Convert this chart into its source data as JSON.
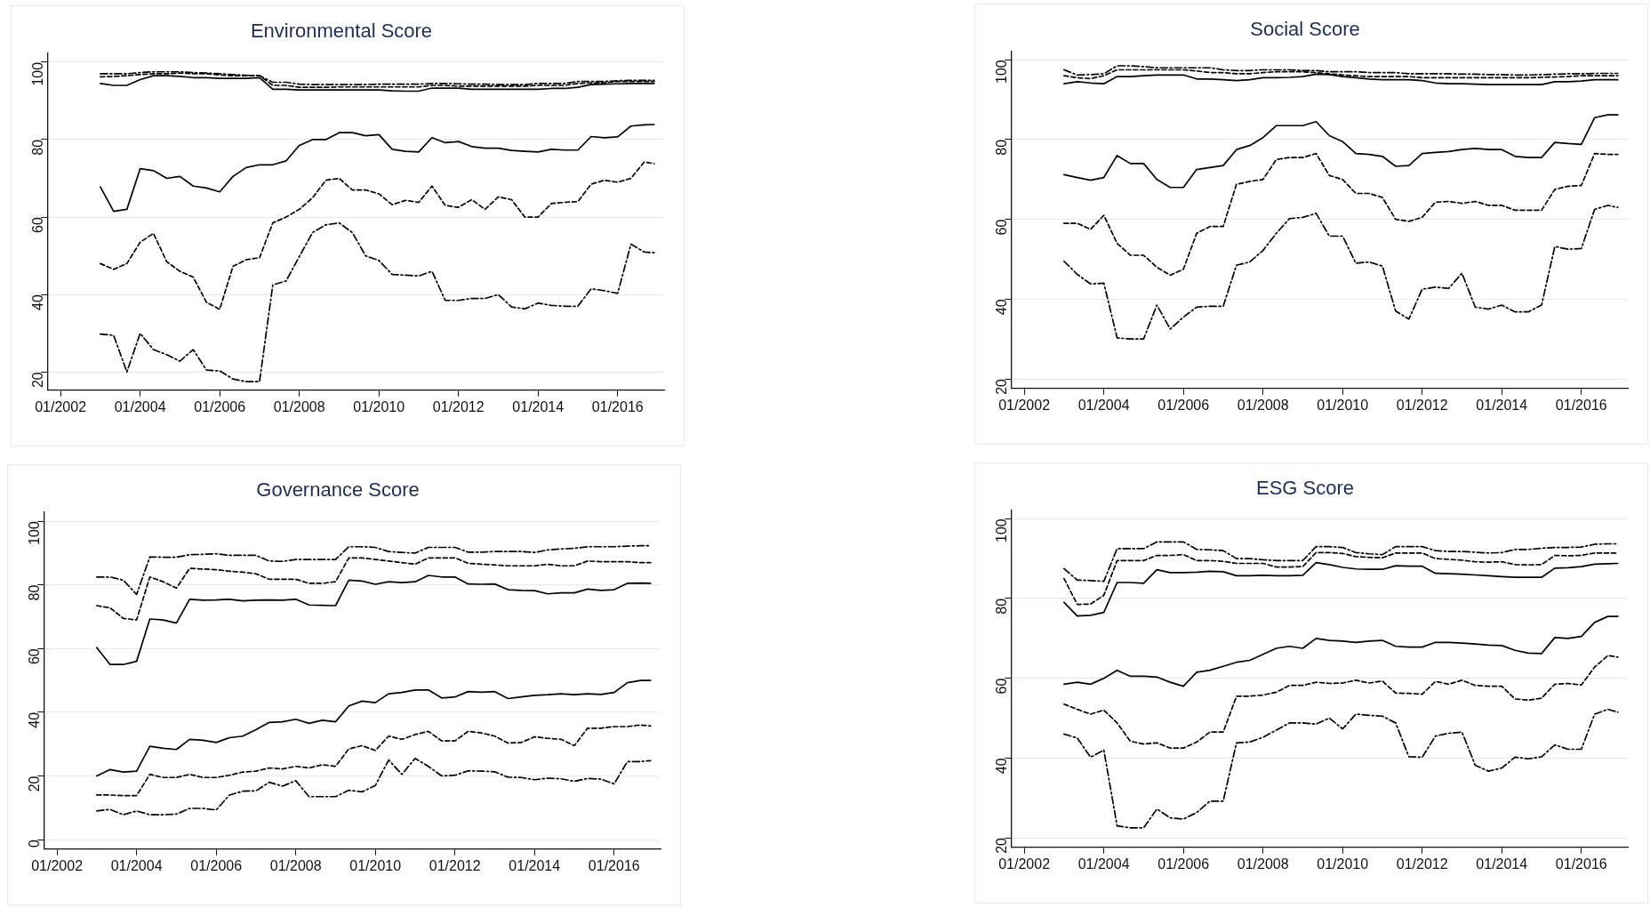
{
  "chart_data": [
    {
      "type": "line",
      "title": "Environmental Score",
      "grid": "y",
      "x": [
        "2003-01",
        "2003-05",
        "2003-09",
        "2004-01",
        "2004-05",
        "2004-09",
        "2005-01",
        "2005-05",
        "2005-09",
        "2006-01",
        "2006-05",
        "2006-09",
        "2007-01",
        "2007-05",
        "2007-09",
        "2008-01",
        "2008-05",
        "2008-09",
        "2009-01",
        "2009-05",
        "2009-09",
        "2010-01",
        "2010-05",
        "2010-09",
        "2011-01",
        "2011-05",
        "2011-09",
        "2012-01",
        "2012-05",
        "2012-09",
        "2013-01",
        "2013-05",
        "2013-09",
        "2014-01",
        "2014-05",
        "2014-09",
        "2015-01",
        "2015-05",
        "2015-09",
        "2016-01",
        "2016-05",
        "2016-09",
        "2016-12"
      ],
      "xlim": [
        "2001-09",
        "2017-03"
      ],
      "xticks": [
        {
          "value": "2002-01",
          "label": "01/2002"
        },
        {
          "value": "2004-01",
          "label": "01/2004"
        },
        {
          "value": "2006-01",
          "label": "01/2006"
        },
        {
          "value": "2008-01",
          "label": "01/2008"
        },
        {
          "value": "2010-01",
          "label": "01/2010"
        },
        {
          "value": "2012-01",
          "label": "01/2012"
        },
        {
          "value": "2014-01",
          "label": "01/2014"
        },
        {
          "value": "2016-01",
          "label": "01/2016"
        }
      ],
      "ylim": [
        15.3,
        102.4
      ],
      "yticks": [
        20,
        40,
        60,
        80,
        100
      ],
      "series": [
        {
          "color": "#000000",
          "line_style": "solid",
          "values": [
            94.5,
            94,
            94,
            95.5,
            96.5,
            96.5,
            96.3,
            96,
            96,
            95.8,
            95.8,
            95.8,
            96,
            93,
            93,
            92.8,
            92.8,
            92.8,
            92.8,
            92.8,
            92.8,
            92.8,
            92.6,
            92.5,
            92.5,
            93.3,
            93.3,
            93.3,
            93,
            93,
            93,
            93,
            93,
            93,
            93.2,
            93.2,
            93.5,
            94.2,
            94.3,
            94.4,
            94.5,
            94.5,
            94.5
          ]
        },
        {
          "color": "#000000",
          "line_style": "dashed",
          "values": [
            96.2,
            96.3,
            96.5,
            96.8,
            97,
            97,
            97.2,
            97,
            97,
            96.7,
            96.5,
            96.5,
            96.5,
            94,
            94,
            93.5,
            93.5,
            93.5,
            93.6,
            93.6,
            93.6,
            93.6,
            93.6,
            93.6,
            93.6,
            94,
            94,
            93.8,
            93.8,
            93.8,
            93.8,
            93.8,
            93.8,
            94,
            94,
            94,
            94.5,
            94.6,
            94.7,
            95,
            95,
            95,
            95
          ]
        },
        {
          "color": "#000000",
          "line_style": "dashdot",
          "values": [
            97,
            97,
            97,
            97.3,
            97.5,
            97.5,
            97.5,
            97.3,
            97.2,
            97,
            96.8,
            96.6,
            96.5,
            94.8,
            94.8,
            94.3,
            94.2,
            94.2,
            94.2,
            94.2,
            94.2,
            94.3,
            94.3,
            94.3,
            94.3,
            94.5,
            94.5,
            94.4,
            94.3,
            94.3,
            94.2,
            94.2,
            94.2,
            94.5,
            94.5,
            94.5,
            95,
            95,
            95,
            95.2,
            95.3,
            95.3,
            95.3
          ]
        },
        {
          "color": "#000000",
          "line_style": "solid",
          "values": [
            67.8,
            61.5,
            62,
            72.5,
            72,
            70,
            70.5,
            68,
            67.5,
            66.5,
            70.5,
            72.8,
            73.5,
            73.5,
            74.5,
            78.5,
            80,
            80,
            81.8,
            81.8,
            81,
            81.3,
            77.5,
            77,
            76.8,
            80.5,
            79.2,
            79.5,
            78.2,
            77.8,
            77.8,
            77.2,
            77,
            76.8,
            77.5,
            77.3,
            77.3,
            80.8,
            80.5,
            80.7,
            83.5,
            83.8,
            83.9
          ]
        },
        {
          "color": "#000000",
          "line_style": "dashed",
          "values": [
            48,
            46.5,
            48,
            53.5,
            55.8,
            48.5,
            46,
            44.5,
            38,
            36.2,
            47.3,
            49,
            49.5,
            58.5,
            60,
            62,
            65,
            69.5,
            70,
            67,
            67,
            66,
            63.2,
            64.3,
            63.8,
            68,
            63,
            62.5,
            64.5,
            62,
            65.2,
            64.5,
            60,
            60,
            63.5,
            63.8,
            64,
            68.5,
            69.5,
            69,
            70,
            74.2,
            73.8
          ]
        },
        {
          "color": "#000000",
          "line_style": "dashdot",
          "values": [
            29.8,
            29.5,
            20,
            30,
            25.8,
            24.5,
            22.8,
            25.8,
            20.5,
            20.3,
            18.2,
            17.5,
            17.5,
            42.5,
            43.5,
            49.8,
            56,
            58,
            58.5,
            56,
            50,
            48.8,
            45.2,
            45,
            44.8,
            46,
            38.5,
            38.5,
            39,
            39,
            40,
            36.8,
            36.3,
            37.8,
            37.2,
            37,
            37,
            41.5,
            41,
            40.3,
            53,
            51,
            50.8
          ]
        }
      ]
    },
    {
      "type": "line",
      "title": "Social Score",
      "grid": "y",
      "x": [
        "2003-01",
        "2003-05",
        "2003-09",
        "2004-01",
        "2004-05",
        "2004-09",
        "2005-01",
        "2005-05",
        "2005-09",
        "2006-01",
        "2006-05",
        "2006-09",
        "2007-01",
        "2007-05",
        "2007-09",
        "2008-01",
        "2008-05",
        "2008-09",
        "2009-01",
        "2009-05",
        "2009-09",
        "2010-01",
        "2010-05",
        "2010-09",
        "2011-01",
        "2011-05",
        "2011-09",
        "2012-01",
        "2012-05",
        "2012-09",
        "2013-01",
        "2013-05",
        "2013-09",
        "2014-01",
        "2014-05",
        "2014-09",
        "2015-01",
        "2015-05",
        "2015-09",
        "2016-01",
        "2016-05",
        "2016-09",
        "2016-12"
      ],
      "xlim": [
        "2001-09",
        "2017-03"
      ],
      "xticks": [
        {
          "value": "2002-01",
          "label": "01/2002"
        },
        {
          "value": "2004-01",
          "label": "01/2004"
        },
        {
          "value": "2006-01",
          "label": "01/2006"
        },
        {
          "value": "2008-01",
          "label": "01/2008"
        },
        {
          "value": "2010-01",
          "label": "01/2010"
        },
        {
          "value": "2012-01",
          "label": "01/2012"
        },
        {
          "value": "2014-01",
          "label": "01/2014"
        },
        {
          "value": "2016-01",
          "label": "01/2016"
        }
      ],
      "ylim": [
        17.6,
        102.2
      ],
      "yticks": [
        20,
        40,
        60,
        80,
        100
      ],
      "series": [
        {
          "color": "#000000",
          "line_style": "solid",
          "values": [
            94,
            94.5,
            94.2,
            94,
            95.8,
            95.8,
            96,
            96.2,
            96.2,
            96.2,
            95.2,
            95.2,
            95,
            94.8,
            95,
            95.5,
            95.5,
            95.6,
            95.8,
            96.4,
            96.3,
            95.8,
            95.5,
            95.2,
            95,
            95,
            95,
            94.8,
            94.2,
            94,
            94,
            93.9,
            93.8,
            93.8,
            93.8,
            93.8,
            93.8,
            94.5,
            94.5,
            94.7,
            95,
            95,
            95
          ]
        },
        {
          "color": "#000000",
          "line_style": "dashed",
          "values": [
            96,
            95.5,
            95.3,
            96,
            97.5,
            97.5,
            97.5,
            97.5,
            97.5,
            97.5,
            97.2,
            96.8,
            96.8,
            96.5,
            96.5,
            96.8,
            97,
            97,
            97,
            96.8,
            96.5,
            96.2,
            96,
            95.8,
            95.8,
            95.8,
            95.8,
            95.5,
            95.5,
            95.5,
            95.5,
            95.5,
            95.5,
            95.5,
            95.5,
            95.5,
            95.6,
            95.7,
            95.8,
            96,
            96,
            96,
            96
          ]
        },
        {
          "color": "#000000",
          "line_style": "dashdot",
          "values": [
            97.5,
            96.2,
            96.3,
            96.5,
            98.5,
            98.5,
            98.3,
            98,
            98,
            98,
            98,
            98,
            97.5,
            97.3,
            97.3,
            97.5,
            97.5,
            97.5,
            97.3,
            97.3,
            97,
            97,
            97,
            96.8,
            96.8,
            96.8,
            96.5,
            96.5,
            96.5,
            96.5,
            96.4,
            96.4,
            96.3,
            96.3,
            96.2,
            96.2,
            96.3,
            96.4,
            96.5,
            96.5,
            96.6,
            96.6,
            96.6
          ]
        },
        {
          "color": "#000000",
          "line_style": "solid",
          "values": [
            71.2,
            70.5,
            69.8,
            70.5,
            76,
            74,
            74,
            70,
            68,
            68,
            72.5,
            73,
            73.5,
            77.5,
            78.5,
            80.5,
            83.5,
            83.5,
            83.5,
            84.5,
            81,
            79.5,
            76.5,
            76.3,
            75.8,
            73.3,
            73.5,
            76.5,
            76.8,
            77,
            77.5,
            77.8,
            77.5,
            77.5,
            75.8,
            75.5,
            75.5,
            79.3,
            79,
            78.8,
            85.5,
            86.2,
            86.2
          ]
        },
        {
          "color": "#000000",
          "line_style": "dashed",
          "values": [
            59,
            59,
            57.5,
            61,
            54,
            51,
            51,
            48,
            46,
            47.5,
            56.5,
            58.2,
            58.2,
            68.8,
            69.5,
            70,
            75,
            75.5,
            75.5,
            76.5,
            71,
            70,
            66.5,
            66.5,
            65.5,
            60,
            59.5,
            60.5,
            64.3,
            64.5,
            64,
            64.5,
            63.5,
            63.5,
            62.3,
            62.3,
            62.3,
            67.5,
            68.3,
            68.5,
            76.5,
            76.3,
            76.3
          ]
        },
        {
          "color": "#000000",
          "line_style": "dashdot",
          "values": [
            49.5,
            46.2,
            43.8,
            44,
            30.3,
            30,
            30,
            38.5,
            32.5,
            35.5,
            38,
            38.2,
            38.2,
            48.5,
            49.3,
            52.2,
            56.5,
            60.2,
            60.5,
            61.5,
            55.8,
            55.8,
            49,
            49.3,
            48.3,
            37,
            35,
            42.5,
            43,
            42.7,
            46.5,
            38,
            37.5,
            38.5,
            36.8,
            36.8,
            38.5,
            53.2,
            52.5,
            52.7,
            62.5,
            63.5,
            63
          ]
        }
      ]
    },
    {
      "type": "line",
      "title": "Governance Score",
      "grid": "y",
      "x": [
        "2003-01",
        "2003-05",
        "2003-09",
        "2004-01",
        "2004-05",
        "2004-09",
        "2005-01",
        "2005-05",
        "2005-09",
        "2006-01",
        "2006-05",
        "2006-09",
        "2007-01",
        "2007-05",
        "2007-09",
        "2008-01",
        "2008-05",
        "2008-09",
        "2009-01",
        "2009-05",
        "2009-09",
        "2010-01",
        "2010-05",
        "2010-09",
        "2011-01",
        "2011-05",
        "2011-09",
        "2012-01",
        "2012-05",
        "2012-09",
        "2013-01",
        "2013-05",
        "2013-09",
        "2014-01",
        "2014-05",
        "2014-09",
        "2015-01",
        "2015-05",
        "2015-09",
        "2016-01",
        "2016-05",
        "2016-09",
        "2016-12"
      ],
      "xlim": [
        "2001-09",
        "2017-03"
      ],
      "xticks": [
        {
          "value": "2002-01",
          "label": "01/2002"
        },
        {
          "value": "2004-01",
          "label": "01/2004"
        },
        {
          "value": "2006-01",
          "label": "01/2006"
        },
        {
          "value": "2008-01",
          "label": "01/2008"
        },
        {
          "value": "2010-01",
          "label": "01/2010"
        },
        {
          "value": "2012-01",
          "label": "01/2012"
        },
        {
          "value": "2014-01",
          "label": "01/2014"
        },
        {
          "value": "2016-01",
          "label": "01/2016"
        }
      ],
      "ylim": [
        -3,
        103
      ],
      "yticks": [
        0,
        20,
        40,
        60,
        80,
        100
      ],
      "series": [
        {
          "color": "#000000",
          "line_style": "solid",
          "values": [
            60.3,
            55,
            55,
            56,
            69.3,
            69,
            68,
            75.5,
            75.2,
            75.3,
            75.5,
            75,
            75.2,
            75.3,
            75.2,
            75.5,
            73.7,
            73.6,
            73.5,
            81.5,
            81.2,
            80.2,
            81,
            80.7,
            81,
            83,
            82.5,
            82.5,
            80.3,
            80.2,
            80.3,
            78.5,
            78.3,
            78.2,
            77.2,
            77.5,
            77.5,
            78.7,
            78.3,
            78.5,
            80.5,
            80.6,
            80.5
          ]
        },
        {
          "color": "#000000",
          "line_style": "dashed",
          "values": [
            73.5,
            72.8,
            69.5,
            69,
            82.5,
            81,
            79,
            85.2,
            85,
            84.8,
            84.3,
            84,
            83.5,
            81.8,
            81.8,
            81.8,
            80.5,
            80.5,
            81,
            88.5,
            88.5,
            88,
            87.5,
            87,
            86.5,
            88.5,
            88.5,
            88.5,
            86.8,
            86.5,
            86.3,
            86,
            86,
            86,
            86.5,
            86,
            86,
            87.5,
            87.3,
            87.3,
            87.3,
            87,
            87
          ]
        },
        {
          "color": "#000000",
          "line_style": "dashdot",
          "values": [
            82.5,
            82.5,
            81.5,
            77,
            88.8,
            88.7,
            88.7,
            89.5,
            89.6,
            89.8,
            89.3,
            89.3,
            89.3,
            87.5,
            87.4,
            88,
            88,
            88,
            88,
            92,
            92,
            91.8,
            90.5,
            90.2,
            90,
            91.8,
            91.8,
            91.8,
            90.3,
            90.3,
            90.5,
            90.5,
            90.5,
            90.2,
            91,
            91.3,
            91.5,
            92,
            92,
            92,
            92.2,
            92.3,
            92.3
          ]
        },
        {
          "color": "#000000",
          "line_style": "solid",
          "values": [
            20,
            22,
            21.2,
            21.5,
            29.3,
            28.7,
            28.3,
            31.5,
            31.2,
            30.5,
            32,
            32.5,
            34.5,
            36.8,
            37,
            37.8,
            36.5,
            37.5,
            37,
            42,
            43.5,
            43,
            45.8,
            46.2,
            47,
            47,
            44.5,
            44.8,
            46.5,
            46.3,
            46.5,
            44.3,
            44.8,
            45.3,
            45.5,
            45.8,
            45.5,
            45.8,
            45.6,
            46.2,
            49.3,
            50,
            50
          ]
        },
        {
          "color": "#000000",
          "line_style": "dashed",
          "values": [
            14,
            14,
            13.8,
            13.8,
            20.5,
            19.5,
            19.5,
            20.5,
            19.5,
            19.5,
            20.2,
            21.2,
            21.5,
            22.5,
            22.2,
            23,
            22.5,
            23.5,
            23,
            28.5,
            29.5,
            28,
            32.5,
            31.5,
            33,
            34,
            31,
            31,
            34,
            33.5,
            32.5,
            30.3,
            30.5,
            32.3,
            31.8,
            31.5,
            29.5,
            35,
            35,
            35.5,
            35.5,
            36,
            35.7
          ]
        },
        {
          "color": "#000000",
          "line_style": "dashdot",
          "values": [
            9,
            9.5,
            7.8,
            9,
            7.8,
            7.8,
            8,
            9.8,
            9.8,
            9.3,
            14,
            15.2,
            15.3,
            18,
            16.8,
            18.5,
            13.5,
            13.5,
            13.5,
            15.5,
            15,
            17,
            25,
            20.5,
            25.5,
            23,
            20,
            20.2,
            21.6,
            21.5,
            21.3,
            19.6,
            19.5,
            18.8,
            19.3,
            19.1,
            18.3,
            19.2,
            19,
            17.5,
            24.5,
            24.5,
            24.8
          ]
        }
      ]
    },
    {
      "type": "line",
      "title": "ESG Score",
      "grid": "y",
      "x": [
        "2003-01",
        "2003-05",
        "2003-09",
        "2004-01",
        "2004-05",
        "2004-09",
        "2005-01",
        "2005-05",
        "2005-09",
        "2006-01",
        "2006-05",
        "2006-09",
        "2007-01",
        "2007-05",
        "2007-09",
        "2008-01",
        "2008-05",
        "2008-09",
        "2009-01",
        "2009-05",
        "2009-09",
        "2010-01",
        "2010-05",
        "2010-09",
        "2011-01",
        "2011-05",
        "2011-09",
        "2012-01",
        "2012-05",
        "2012-09",
        "2013-01",
        "2013-05",
        "2013-09",
        "2014-01",
        "2014-05",
        "2014-09",
        "2015-01",
        "2015-05",
        "2015-09",
        "2016-01",
        "2016-05",
        "2016-09",
        "2016-12"
      ],
      "xlim": [
        "2001-09",
        "2017-03"
      ],
      "xticks": [
        {
          "value": "2002-01",
          "label": "01/2002"
        },
        {
          "value": "2004-01",
          "label": "01/2004"
        },
        {
          "value": "2006-01",
          "label": "01/2006"
        },
        {
          "value": "2008-01",
          "label": "01/2008"
        },
        {
          "value": "2010-01",
          "label": "01/2010"
        },
        {
          "value": "2012-01",
          "label": "01/2012"
        },
        {
          "value": "2014-01",
          "label": "01/2014"
        },
        {
          "value": "2016-01",
          "label": "01/2016"
        }
      ],
      "ylim": [
        17.6,
        102.2
      ],
      "yticks": [
        20,
        40,
        60,
        80,
        100
      ],
      "series": [
        {
          "color": "#000000",
          "line_style": "solid",
          "values": [
            79,
            75.6,
            75.8,
            76.5,
            84,
            84,
            83.8,
            87.2,
            86.5,
            86.5,
            86.6,
            86.8,
            86.7,
            85.7,
            85.7,
            85.8,
            85.7,
            85.7,
            85.8,
            89,
            88.5,
            87.8,
            87.4,
            87.3,
            87.3,
            88.2,
            88.1,
            88.1,
            86.3,
            86.2,
            86.1,
            85.9,
            85.7,
            85.5,
            85.3,
            85.3,
            85.3,
            87.6,
            87.7,
            88,
            88.6,
            88.7,
            88.8
          ]
        },
        {
          "color": "#000000",
          "line_style": "dashed",
          "values": [
            85,
            78.5,
            78.6,
            80.8,
            89.5,
            89.5,
            89.5,
            90.8,
            90.8,
            91,
            89.5,
            89.5,
            89.3,
            88.8,
            88.8,
            88.8,
            87.9,
            87.9,
            88,
            91.5,
            91.5,
            91.3,
            90.5,
            90.3,
            90.2,
            91.4,
            91.4,
            91.4,
            90,
            89.8,
            89.6,
            89.2,
            89.1,
            89.2,
            88.5,
            88.4,
            88.5,
            90.8,
            90.7,
            90.8,
            91.4,
            91.4,
            91.4
          ]
        },
        {
          "color": "#000000",
          "line_style": "dashdot",
          "values": [
            87.5,
            84.6,
            84.5,
            84.3,
            92.5,
            92.5,
            92.5,
            94.2,
            94.2,
            94.2,
            92.3,
            92.2,
            92,
            90,
            90,
            89.7,
            89.5,
            89.5,
            89.5,
            93,
            93,
            92.8,
            91.5,
            91.2,
            91,
            93,
            93,
            93,
            92,
            91.8,
            91.8,
            91.6,
            91.4,
            91.5,
            92.3,
            92.3,
            92.6,
            92.8,
            92.8,
            92.9,
            93.6,
            93.7,
            93.7
          ]
        },
        {
          "color": "#000000",
          "line_style": "solid",
          "values": [
            58.5,
            59,
            58.5,
            60,
            62,
            60.5,
            60.5,
            60.3,
            59,
            58,
            61.5,
            62,
            63,
            64,
            64.5,
            66,
            67.5,
            68,
            67.5,
            70,
            69.5,
            69.3,
            69,
            69.3,
            69.5,
            68,
            67.8,
            67.8,
            69,
            69,
            68.8,
            68.6,
            68.3,
            68.2,
            67,
            66.3,
            66.2,
            70.2,
            70,
            70.5,
            74,
            75.5,
            75.5
          ]
        },
        {
          "color": "#000000",
          "line_style": "dashed",
          "values": [
            53.5,
            52.2,
            51,
            52,
            48.8,
            44.2,
            43.5,
            43.8,
            42.5,
            42.5,
            44,
            46.5,
            46.5,
            55.5,
            55.5,
            55.8,
            56.5,
            58.2,
            58.2,
            59,
            58.7,
            58.8,
            59.5,
            58.8,
            59.3,
            56.3,
            56.2,
            56,
            59.2,
            58.5,
            59.5,
            58.2,
            58,
            58,
            54.8,
            54.5,
            55,
            58.5,
            58.7,
            58.3,
            62.8,
            65.7,
            65.3
          ]
        },
        {
          "color": "#000000",
          "line_style": "dashdot",
          "values": [
            46,
            45,
            40.2,
            42,
            23,
            22.5,
            22.5,
            27.2,
            25,
            24.7,
            26.3,
            29.2,
            29.2,
            43.8,
            44,
            45.2,
            47,
            48.8,
            48.8,
            48.5,
            50,
            47.3,
            51,
            50.7,
            50.5,
            48.8,
            40.3,
            40.2,
            45.5,
            46.2,
            46.5,
            38.2,
            36.7,
            37.5,
            40.2,
            39.8,
            40.3,
            43.3,
            42.2,
            42.2,
            51,
            52.2,
            51.5
          ]
        }
      ]
    }
  ]
}
